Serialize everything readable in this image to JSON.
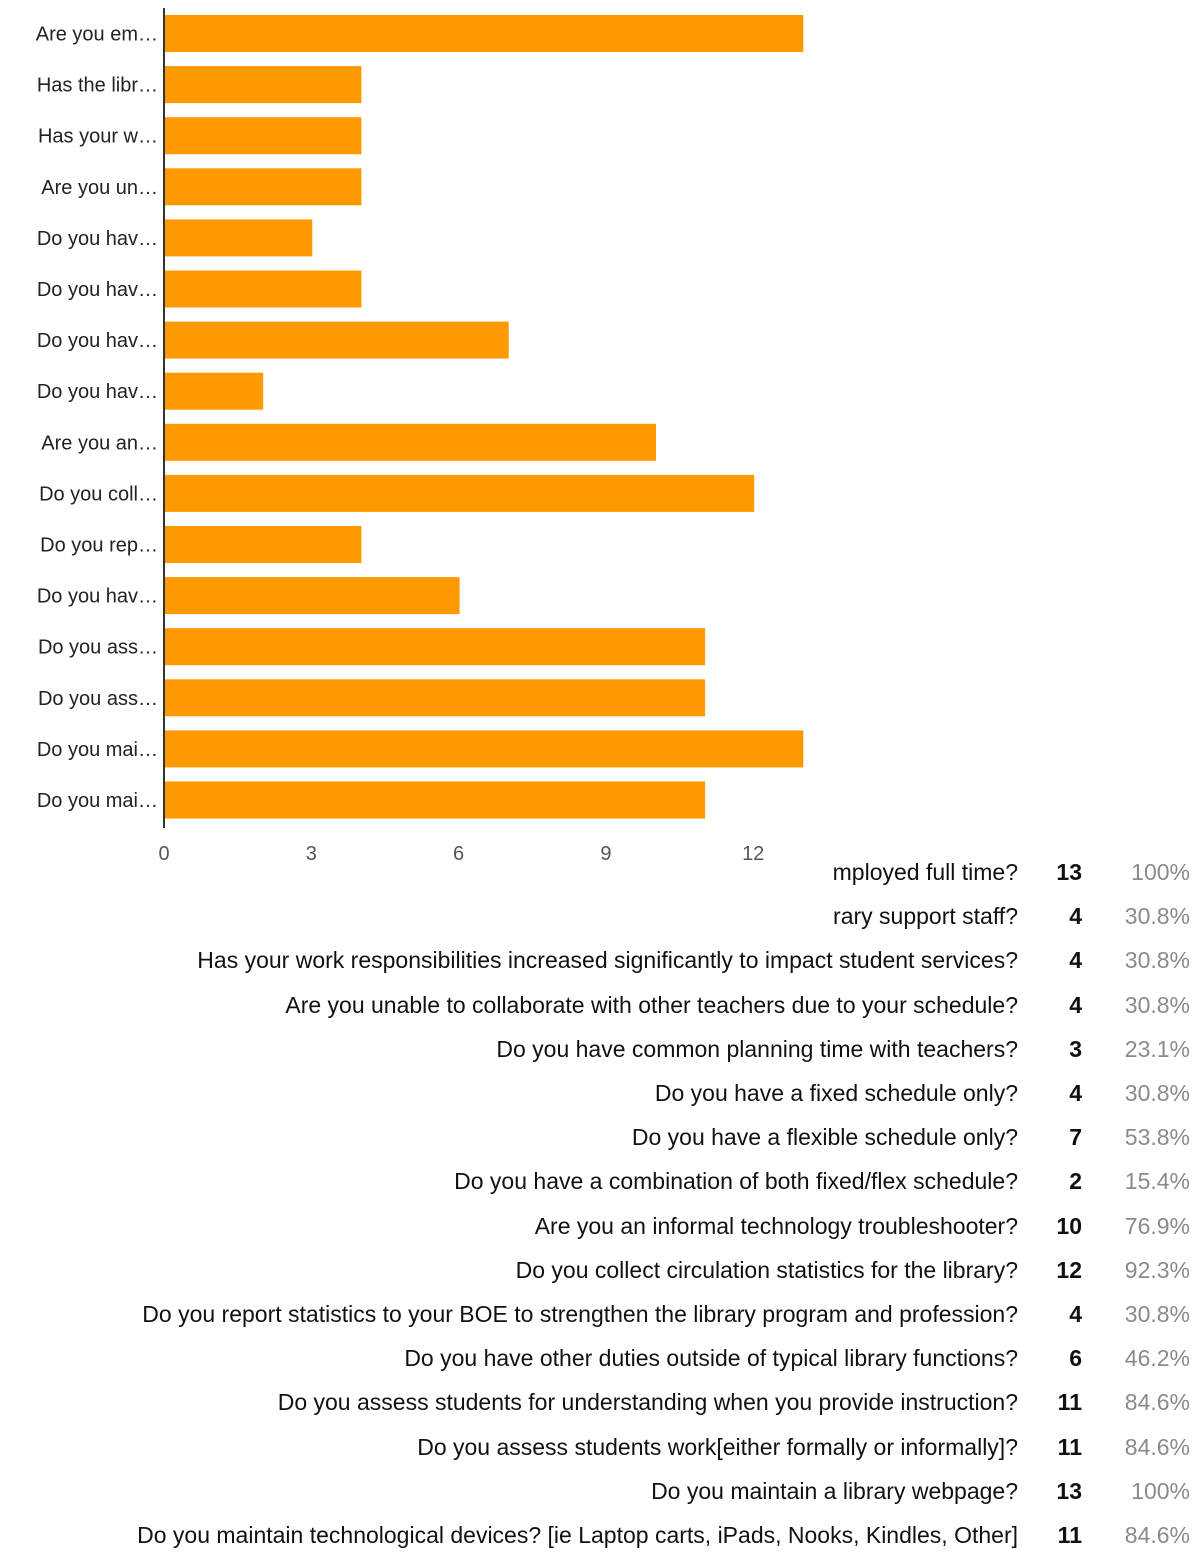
{
  "chart_data": {
    "type": "bar",
    "orientation": "horizontal",
    "categories": [
      "Are you em…",
      "Has the libr…",
      "Has your w…",
      "Are you un…",
      "Do you hav…",
      "Do you hav…",
      "Do you hav…",
      "Do you hav…",
      "Are you an…",
      "Do you coll…",
      "Do you rep…",
      "Do you hav…",
      "Do you ass…",
      "Do you ass…",
      "Do you mai…",
      "Do you mai…"
    ],
    "values": [
      13,
      4,
      4,
      4,
      3,
      4,
      7,
      2,
      10,
      12,
      4,
      6,
      11,
      11,
      13,
      11
    ],
    "xticks": [
      "0",
      "3",
      "6",
      "9",
      "12"
    ],
    "xlim": [
      0,
      13
    ],
    "color": "#ff9900",
    "grid": false
  },
  "table": {
    "rows": [
      {
        "question": "mployed full time?",
        "count": "13",
        "percent": "100%"
      },
      {
        "question": "rary support staff?",
        "count": "4",
        "percent": "30.8%"
      },
      {
        "question": "Has your work responsibilities increased significantly to impact student services?",
        "count": "4",
        "percent": "30.8%"
      },
      {
        "question": "Are you unable to collaborate with other teachers due to your schedule?",
        "count": "4",
        "percent": "30.8%"
      },
      {
        "question": "Do you have common planning time with teachers?",
        "count": "3",
        "percent": "23.1%"
      },
      {
        "question": "Do you have a fixed schedule only?",
        "count": "4",
        "percent": "30.8%"
      },
      {
        "question": "Do you have a flexible schedule only?",
        "count": "7",
        "percent": "53.8%"
      },
      {
        "question": "Do you have a combination of both fixed/flex schedule?",
        "count": "2",
        "percent": "15.4%"
      },
      {
        "question": "Are you an informal technology troubleshooter?",
        "count": "10",
        "percent": "76.9%"
      },
      {
        "question": "Do you collect circulation statistics for the library?",
        "count": "12",
        "percent": "92.3%"
      },
      {
        "question": "Do you report statistics to your BOE to strengthen the library program and profession?",
        "count": "4",
        "percent": "30.8%"
      },
      {
        "question": "Do you have other duties outside of typical library functions?",
        "count": "6",
        "percent": "46.2%"
      },
      {
        "question": "Do you assess students for understanding when you provide instruction?",
        "count": "11",
        "percent": "84.6%"
      },
      {
        "question": "Do you assess students work[either formally or informally]?",
        "count": "11",
        "percent": "84.6%"
      },
      {
        "question": "Do you maintain a library webpage?",
        "count": "13",
        "percent": "100%"
      },
      {
        "question": "Do you maintain technological devices? [ie Laptop carts, iPads, Nooks, Kindles, Other]",
        "count": "11",
        "percent": "84.6%"
      }
    ]
  }
}
